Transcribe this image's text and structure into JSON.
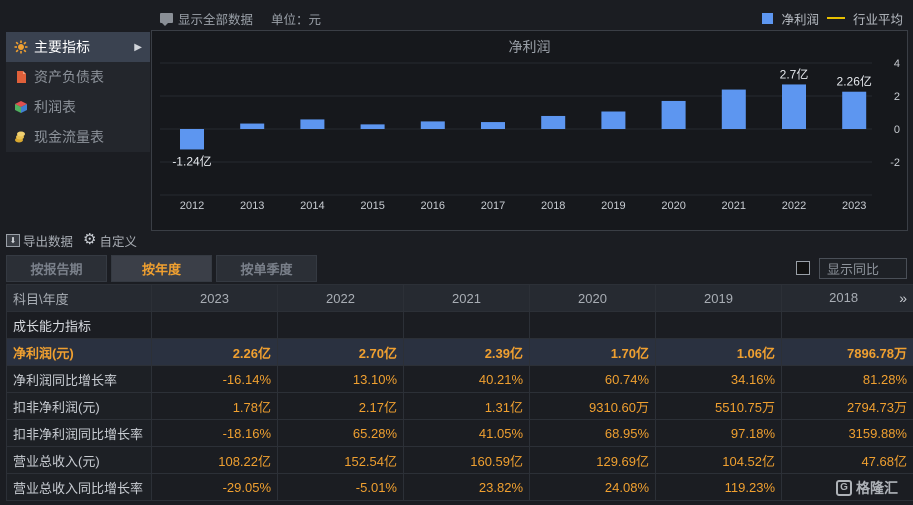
{
  "toolbar": {
    "show_all": "显示全部数据",
    "unit": "单位：元"
  },
  "legend": {
    "net_profit": "净利润",
    "industry_avg": "行业平均"
  },
  "menu": [
    {
      "label": "主要指标",
      "active": true,
      "icon": "star-icon"
    },
    {
      "label": "资产负债表",
      "active": false,
      "icon": "document-icon"
    },
    {
      "label": "利润表",
      "active": false,
      "icon": "cube-icon"
    },
    {
      "label": "现金流量表",
      "active": false,
      "icon": "coins-icon"
    }
  ],
  "colors": {
    "bar": "#5d96f0",
    "accent": "#f0a030",
    "industry_line": "#e8c000"
  },
  "chart_data": {
    "type": "bar",
    "title": "净利润",
    "categories": [
      "2012",
      "2013",
      "2014",
      "2015",
      "2016",
      "2017",
      "2018",
      "2019",
      "2020",
      "2021",
      "2022",
      "2023"
    ],
    "values": [
      -1.24,
      0.33,
      0.58,
      0.28,
      0.46,
      0.42,
      0.79,
      1.06,
      1.7,
      2.39,
      2.7,
      2.26
    ],
    "data_labels": {
      "0": "-1.24亿",
      "10": "2.7亿",
      "11": "2.26亿"
    },
    "y_ticks": [
      "4",
      "2",
      "0",
      "-2"
    ],
    "ylim": [
      -4,
      4
    ],
    "grid": true,
    "legend": "top-right"
  },
  "export": {
    "export_label": "导出数据",
    "custom_label": "自定义"
  },
  "tabs": [
    {
      "label": "按报告期",
      "active": false
    },
    {
      "label": "按年度",
      "active": true
    },
    {
      "label": "按单季度",
      "active": false
    }
  ],
  "yoy_toggle": "显示同比",
  "table": {
    "header_label": "科目\\年度",
    "years": [
      "2023",
      "2022",
      "2021",
      "2020",
      "2019",
      "2018"
    ],
    "more": "»",
    "section": "成长能力指标",
    "rows": [
      {
        "label": "净利润(元)",
        "values": [
          "2.26亿",
          "2.70亿",
          "2.39亿",
          "1.70亿",
          "1.06亿",
          "7896.78万"
        ],
        "highlight": true
      },
      {
        "label": "净利润同比增长率",
        "values": [
          "-16.14%",
          "13.10%",
          "40.21%",
          "60.74%",
          "34.16%",
          "81.28%"
        ]
      },
      {
        "label": "扣非净利润(元)",
        "values": [
          "1.78亿",
          "2.17亿",
          "1.31亿",
          "9310.60万",
          "5510.75万",
          "2794.73万"
        ]
      },
      {
        "label": "扣非净利润同比增长率",
        "values": [
          "-18.16%",
          "65.28%",
          "41.05%",
          "68.95%",
          "97.18%",
          "3159.88%"
        ]
      },
      {
        "label": "营业总收入(元)",
        "values": [
          "108.22亿",
          "152.54亿",
          "160.59亿",
          "129.69亿",
          "104.52亿",
          "47.68亿"
        ]
      },
      {
        "label": "营业总收入同比增长率",
        "values": [
          "-29.05%",
          "-5.01%",
          "23.82%",
          "24.08%",
          "119.23%",
          ""
        ]
      }
    ]
  },
  "watermark": "格隆汇"
}
